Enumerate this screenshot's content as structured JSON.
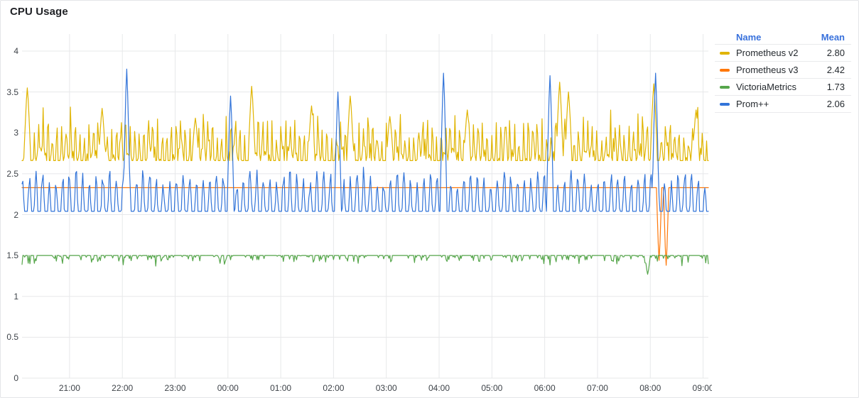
{
  "panel": {
    "title": "CPU Usage"
  },
  "legend": {
    "columns": {
      "name": "Name",
      "mean": "Mean"
    }
  },
  "colors": {
    "grid": "#e7e8ea",
    "axis_text": "#3e4349",
    "legend_header": "#3871dc",
    "text": "#24292e"
  },
  "chart_data": {
    "type": "line",
    "title": "CPU Usage",
    "x_axis": {
      "start": "20:06",
      "end": "09:06",
      "duration_minutes": 780,
      "tick_labels": [
        "21:00",
        "22:00",
        "23:00",
        "00:00",
        "01:00",
        "02:00",
        "03:00",
        "04:00",
        "05:00",
        "06:00",
        "07:00",
        "08:00",
        "09:00"
      ]
    },
    "y_axis": {
      "min": 0,
      "max": 4,
      "tick_labels": [
        "0",
        "0.5",
        "1",
        "1.5",
        "2",
        "2.5",
        "3",
        "3.5",
        "4"
      ]
    },
    "legend_position": "right",
    "grid": true,
    "series": [
      {
        "name": "Prometheus v2",
        "color": "#E0B400",
        "mean": "2.80",
        "seed": 11,
        "band": [
          2.4,
          3.3
        ],
        "model": {
          "base": 2.66,
          "amp1": 0.1,
          "p1": 31,
          "amp2": 0.08,
          "p2": 3.1,
          "ampH": 0.42,
          "pH": 5.2,
          "expH": 1.4,
          "noise": 0.11,
          "clampMin": 2.4,
          "clampMax": 3.32
        },
        "spikes": [
          {
            "t": "20:12",
            "v": 3.55,
            "w": 4
          },
          {
            "t": "21:37",
            "v": 3.3,
            "w": 4
          },
          {
            "t": "23:23",
            "v": 3.18,
            "w": 4
          },
          {
            "t": "00:27",
            "v": 3.57,
            "w": 4
          },
          {
            "t": "01:35",
            "v": 3.33,
            "w": 4
          },
          {
            "t": "02:19",
            "v": 3.45,
            "w": 4
          },
          {
            "t": "03:04",
            "v": 3.2,
            "w": 4
          },
          {
            "t": "04:32",
            "v": 3.28,
            "w": 4
          },
          {
            "t": "06:17",
            "v": 3.62,
            "w": 4
          },
          {
            "t": "06:27",
            "v": 3.5,
            "w": 4
          },
          {
            "t": "08:04",
            "v": 3.6,
            "w": 4
          },
          {
            "t": "08:52",
            "v": 3.28,
            "w": 4
          }
        ],
        "dips": []
      },
      {
        "name": "Prometheus v3",
        "color": "#FF780A",
        "mean": "2.42",
        "seed": 22,
        "band": [
          2.0,
          2.9
        ],
        "model": {
          "base": 2.33,
          "amp1": 0.07,
          "p1": 23,
          "amp2": 0.06,
          "p2": 2.7,
          "ampH": 0.28,
          "pH": 6.1,
          "expH": 1.2,
          "noise": 0.11,
          "clampMin": 2.02,
          "clampMax": 2.92
        },
        "spikes": [
          {
            "t": "20:08",
            "v": 2.95,
            "w": 3
          },
          {
            "t": "22:18",
            "v": 2.88,
            "w": 3
          }
        ],
        "dips": [
          {
            "t": "08:10",
            "v": 1.44,
            "w": 3
          },
          {
            "t": "08:18",
            "v": 1.38,
            "w": 3
          }
        ]
      },
      {
        "name": "VictoriaMetrics",
        "color": "#56A64B",
        "mean": "1.73",
        "seed": 33,
        "band": [
          1.35,
          2.45
        ],
        "model": {
          "base": 1.5,
          "amp1": 0.04,
          "p1": 37,
          "amp2": 0.03,
          "p2": 2.3,
          "ampH": 0.85,
          "pH": 7.2,
          "expH": 2.2,
          "noise": 0.07,
          "clampMin": 1.34,
          "clampMax": 2.45
        },
        "spikes": [],
        "dips": [
          {
            "t": "07:57",
            "v": 1.27,
            "w": 3
          }
        ]
      },
      {
        "name": "Prom++",
        "color": "#3274D9",
        "mean": "2.06",
        "seed": 44,
        "band": [
          1.62,
          2.58
        ],
        "model": {
          "base": 2.04,
          "amp1": 0.06,
          "p1": 41,
          "amp2": 0.38,
          "p2": 7.6,
          "ampH": 0.05,
          "pH": 3.1,
          "expH": 1.0,
          "noise": 0.07,
          "clampMin": 1.62,
          "clampMax": 2.58
        },
        "spikes": [
          {
            "t": "22:05",
            "v": 3.78,
            "w": 4
          },
          {
            "t": "00:03",
            "v": 3.45,
            "w": 4
          },
          {
            "t": "02:05",
            "v": 3.5,
            "w": 4
          },
          {
            "t": "04:05",
            "v": 3.73,
            "w": 4
          },
          {
            "t": "06:06",
            "v": 3.7,
            "w": 4
          },
          {
            "t": "08:06",
            "v": 3.73,
            "w": 4
          }
        ],
        "dips": []
      }
    ]
  }
}
